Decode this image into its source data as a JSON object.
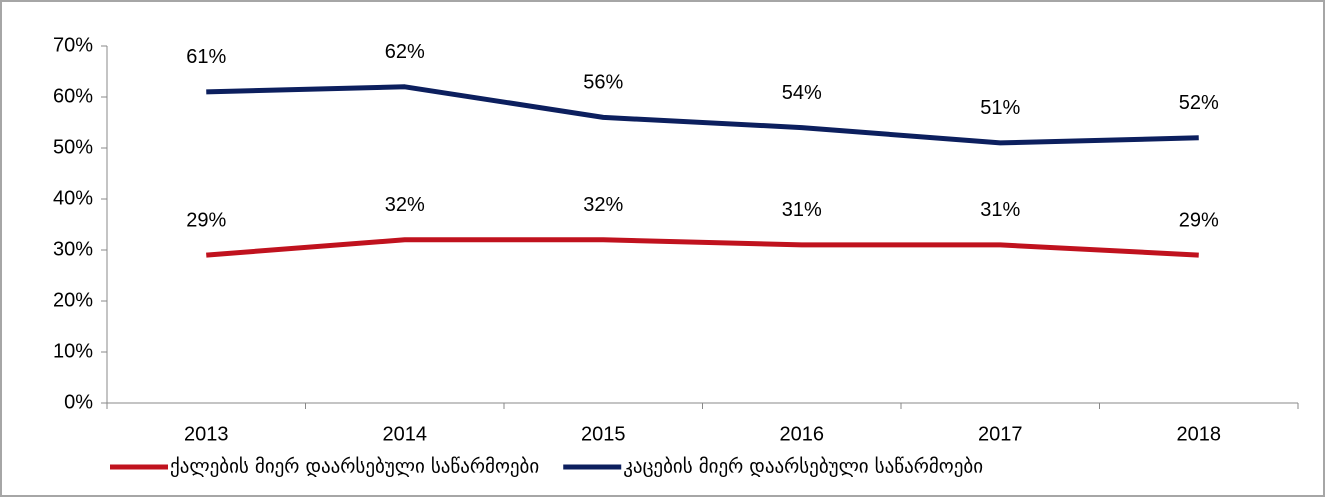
{
  "chart_data": {
    "type": "line",
    "categories": [
      "2013",
      "2014",
      "2015",
      "2016",
      "2017",
      "2018"
    ],
    "series": [
      {
        "name": "ქალების მიერ დაარსებული საწარმოები",
        "color": "#c0121e",
        "values": [
          29,
          32,
          32,
          31,
          31,
          29
        ],
        "value_labels": [
          "29%",
          "32%",
          "32%",
          "31%",
          "31%",
          "29%"
        ]
      },
      {
        "name": "კაცების მიერ დაარსებული საწარმოები",
        "color": "#0c1f5e",
        "values": [
          61,
          62,
          56,
          54,
          51,
          52
        ],
        "value_labels": [
          "61%",
          "62%",
          "56%",
          "54%",
          "51%",
          "52%"
        ]
      }
    ],
    "ylim": [
      0,
      70
    ],
    "yticks": [
      {
        "value": 0,
        "label": "0%"
      },
      {
        "value": 10,
        "label": "10%"
      },
      {
        "value": 20,
        "label": "20%"
      },
      {
        "value": 30,
        "label": "30%"
      },
      {
        "value": 40,
        "label": "40%"
      },
      {
        "value": 50,
        "label": "50%"
      },
      {
        "value": 60,
        "label": "60%"
      },
      {
        "value": 70,
        "label": "70%"
      }
    ],
    "grid": false,
    "legend": "bottom"
  }
}
